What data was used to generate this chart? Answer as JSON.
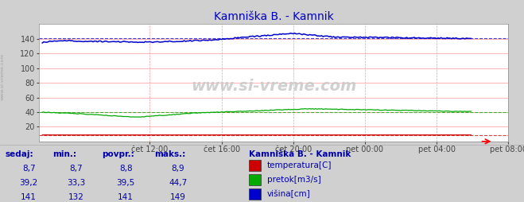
{
  "title": "Kamniška B. - Kamnik",
  "title_color": "#0000cc",
  "bg_color": "#d0d0d0",
  "plot_bg_color": "#ffffff",
  "grid_color_v": "#ff9999",
  "grid_color_h": "#ff9999",
  "x_tick_labels": [
    "čet 12:00",
    "čet 16:00",
    "čet 20:00",
    "pet 00:00",
    "pet 04:00",
    "pet 08:00"
  ],
  "x_tick_positions": [
    0.25,
    0.4167,
    0.5833,
    0.75,
    0.9167,
    1.0833
  ],
  "ylim": [
    0,
    160
  ],
  "yticks": [
    20,
    40,
    60,
    80,
    100,
    120,
    140
  ],
  "n_points": 288,
  "temp_color": "#cc0000",
  "temp_min": 8.7,
  "temp_max": 8.9,
  "temp_avg": 8.8,
  "pretok_color": "#00aa00",
  "pretok_min": 33.3,
  "pretok_max": 44.7,
  "pretok_avg": 39.5,
  "visina_color": "#0000cc",
  "visina_min": 132,
  "visina_max": 149,
  "visina_avg": 141,
  "watermark": "www.si-vreme.com",
  "sidebar_text": "www.si-vreme.com",
  "legend_title": "Kamniška B. - Kamnik",
  "legend_labels": [
    "temperatura[C]",
    "pretok[m3/s]",
    "višina[cm]"
  ],
  "legend_colors": [
    "#cc0000",
    "#00aa00",
    "#0000cc"
  ],
  "table_headers": [
    "sedaj:",
    "min.:",
    "povpr.:",
    "maks.:"
  ],
  "table_color": "#0000aa",
  "table_values": [
    [
      "8,7",
      "8,7",
      "8,8",
      "8,9"
    ],
    [
      "39,2",
      "33,3",
      "39,5",
      "44,7"
    ],
    [
      "141",
      "132",
      "141",
      "149"
    ]
  ]
}
